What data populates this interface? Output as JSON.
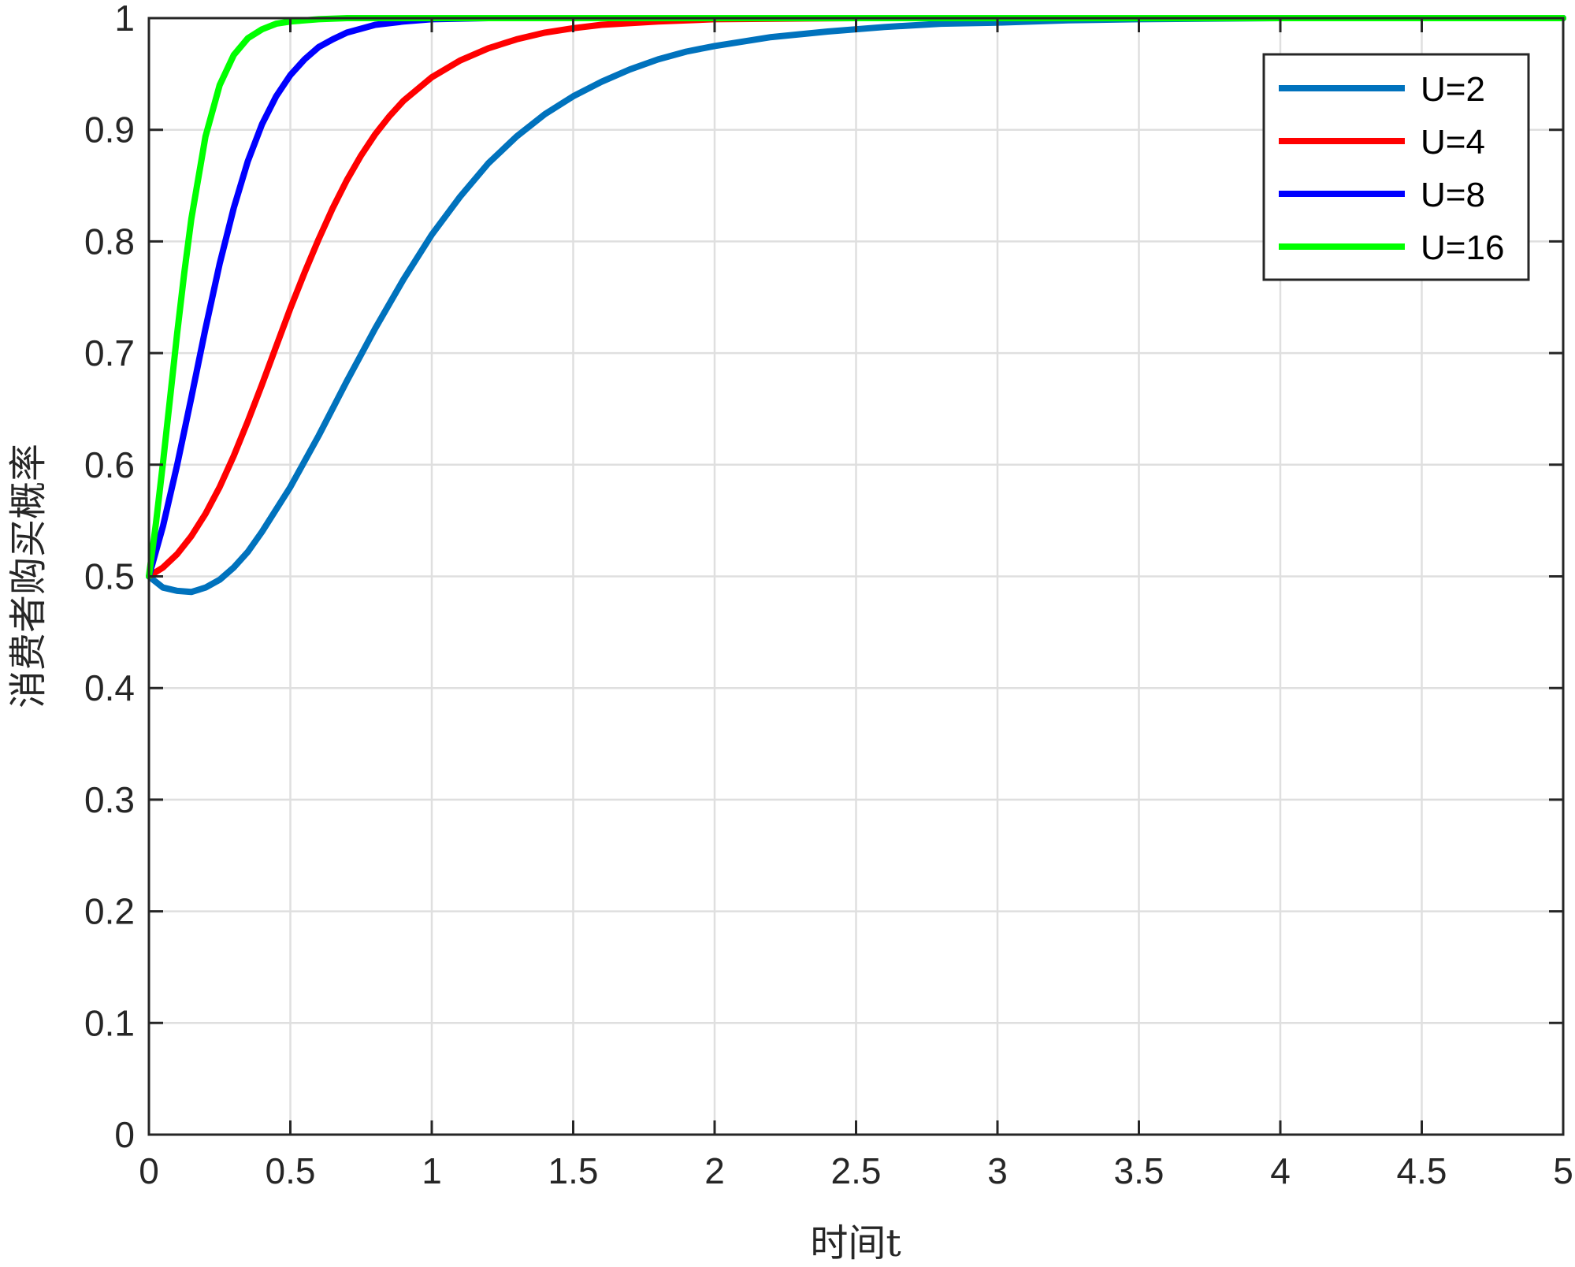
{
  "chart_data": {
    "type": "line",
    "xlabel": "时间t",
    "ylabel": "消费者购买概率",
    "xlim": [
      0,
      5
    ],
    "ylim": [
      0,
      1
    ],
    "xticks": [
      "0",
      "0.5",
      "1",
      "1.5",
      "2",
      "2.5",
      "3",
      "3.5",
      "4",
      "4.5",
      "5"
    ],
    "yticks": [
      "0",
      "0.1",
      "0.2",
      "0.3",
      "0.4",
      "0.5",
      "0.6",
      "0.7",
      "0.8",
      "0.9",
      "1"
    ],
    "grid": true,
    "legend_position": "top-right",
    "series": [
      {
        "name": "U=2",
        "color": "#0072BD",
        "x": [
          0,
          0.05,
          0.1,
          0.15,
          0.2,
          0.25,
          0.3,
          0.35,
          0.4,
          0.5,
          0.6,
          0.7,
          0.8,
          0.9,
          1.0,
          1.1,
          1.2,
          1.3,
          1.4,
          1.5,
          1.6,
          1.7,
          1.8,
          1.9,
          2.0,
          2.2,
          2.4,
          2.6,
          2.8,
          3.0,
          3.25,
          3.5,
          4.0,
          4.5,
          5.0
        ],
        "y": [
          0.5,
          0.49,
          0.487,
          0.486,
          0.49,
          0.497,
          0.508,
          0.522,
          0.54,
          0.58,
          0.626,
          0.675,
          0.722,
          0.766,
          0.806,
          0.84,
          0.87,
          0.894,
          0.914,
          0.93,
          0.943,
          0.954,
          0.963,
          0.97,
          0.975,
          0.983,
          0.988,
          0.992,
          0.995,
          0.996,
          0.998,
          0.999,
          1.0,
          1.0,
          1.0
        ]
      },
      {
        "name": "U=4",
        "color": "#FF0000",
        "x": [
          0,
          0.05,
          0.1,
          0.15,
          0.2,
          0.25,
          0.3,
          0.35,
          0.4,
          0.45,
          0.5,
          0.55,
          0.6,
          0.65,
          0.7,
          0.75,
          0.8,
          0.85,
          0.9,
          1.0,
          1.1,
          1.2,
          1.3,
          1.4,
          1.5,
          1.6,
          1.8,
          2.0,
          2.5,
          3.0,
          4.0,
          5.0
        ],
        "y": [
          0.5,
          0.508,
          0.52,
          0.536,
          0.556,
          0.58,
          0.608,
          0.639,
          0.672,
          0.706,
          0.74,
          0.772,
          0.802,
          0.83,
          0.855,
          0.877,
          0.896,
          0.912,
          0.926,
          0.947,
          0.962,
          0.973,
          0.981,
          0.987,
          0.991,
          0.994,
          0.997,
          0.999,
          1.0,
          1.0,
          1.0,
          1.0
        ]
      },
      {
        "name": "U=8",
        "color": "#0000FF",
        "x": [
          0,
          0.05,
          0.1,
          0.15,
          0.2,
          0.25,
          0.3,
          0.35,
          0.4,
          0.45,
          0.5,
          0.55,
          0.6,
          0.65,
          0.7,
          0.8,
          0.9,
          1.0,
          1.2,
          1.5,
          2.0,
          3.0,
          4.0,
          5.0
        ],
        "y": [
          0.5,
          0.545,
          0.6,
          0.66,
          0.722,
          0.78,
          0.83,
          0.872,
          0.905,
          0.93,
          0.949,
          0.963,
          0.974,
          0.981,
          0.987,
          0.994,
          0.997,
          0.999,
          1.0,
          1.0,
          1.0,
          1.0,
          1.0,
          1.0
        ]
      },
      {
        "name": "U=16",
        "color": "#00FF00",
        "x": [
          0,
          0.025,
          0.05,
          0.075,
          0.1,
          0.125,
          0.15,
          0.2,
          0.25,
          0.3,
          0.35,
          0.4,
          0.45,
          0.5,
          0.6,
          0.7,
          0.8,
          1.0,
          1.5,
          2.0,
          3.0,
          4.0,
          5.0
        ],
        "y": [
          0.5,
          0.548,
          0.602,
          0.66,
          0.718,
          0.772,
          0.82,
          0.894,
          0.94,
          0.967,
          0.982,
          0.99,
          0.995,
          0.997,
          0.999,
          1.0,
          1.0,
          1.0,
          1.0,
          1.0,
          1.0,
          1.0,
          1.0
        ]
      }
    ]
  }
}
